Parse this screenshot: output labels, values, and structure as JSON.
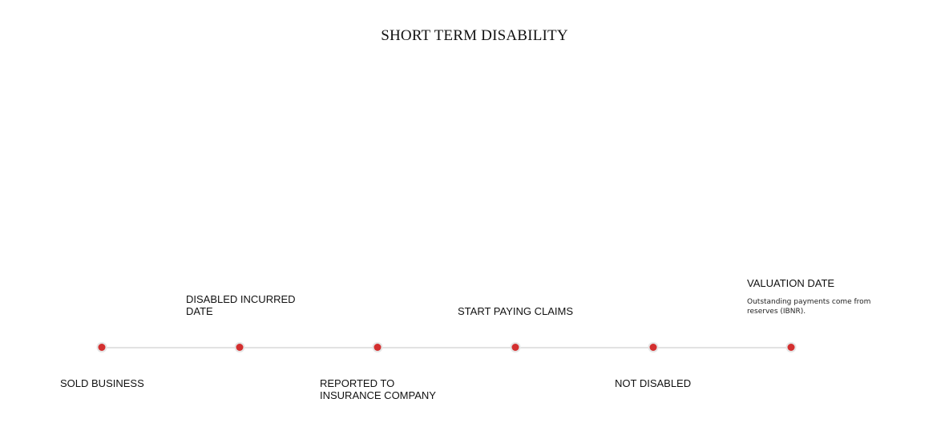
{
  "title": "SHORT TERM DISABILITY",
  "accent_color": "#d32f2f",
  "events": [
    {
      "label": "SOLD BUSINESS"
    },
    {
      "label_lines": [
        "DISABLED INCURRED",
        "DATE"
      ]
    },
    {
      "label_lines": [
        "REPORTED TO",
        "INSURANCE COMPANY"
      ]
    },
    {
      "label": "START PAYING CLAIMS"
    },
    {
      "label": "NOT DISABLED"
    },
    {
      "label": "VALUATION DATE",
      "note_lines": [
        "Outstanding payments come from",
        "reserves (IBNR)."
      ]
    }
  ]
}
